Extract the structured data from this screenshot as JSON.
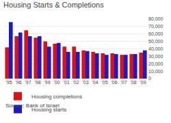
{
  "chart_data": {
    "type": "bar",
    "title": "Housing Starts & Completions",
    "annotations": [
      "Source: Bank of Israel"
    ],
    "categories": [
      "'95",
      "'96",
      "'97",
      "'98",
      "'99",
      "'00",
      "'01",
      "'02",
      "'03",
      "'04",
      "'05",
      "'06",
      "'07",
      "'08",
      "'09"
    ],
    "series": [
      {
        "name": "Housing completions",
        "color": "#dd1111",
        "values": [
          42000,
          57000,
          65000,
          55000,
          50000,
          47000,
          43000,
          43000,
          38000,
          36000,
          34000,
          34000,
          32000,
          33000,
          35000
        ]
      },
      {
        "name": "Housing starts",
        "color": "#1a1acc",
        "values": [
          76000,
          62000,
          57000,
          57000,
          43000,
          48000,
          36000,
          36000,
          37000,
          34000,
          32000,
          33000,
          32000,
          33000,
          38000
        ]
      }
    ],
    "ylim": [
      0,
      80000
    ],
    "yticks": [
      0,
      {
        "value": 10000,
        "label": "10,000"
      },
      {
        "value": 20000,
        "label": "20,000"
      },
      {
        "value": 30000,
        "label": "30,000"
      },
      {
        "value": 40000,
        "label": "40,000"
      },
      {
        "value": 50000,
        "label": "50,000"
      },
      {
        "value": 60000,
        "label": "60,000"
      },
      {
        "value": 70000,
        "label": "70,000"
      },
      {
        "value": 80000,
        "label": "80,000"
      }
    ],
    "grid": true,
    "legend": "bottom"
  }
}
